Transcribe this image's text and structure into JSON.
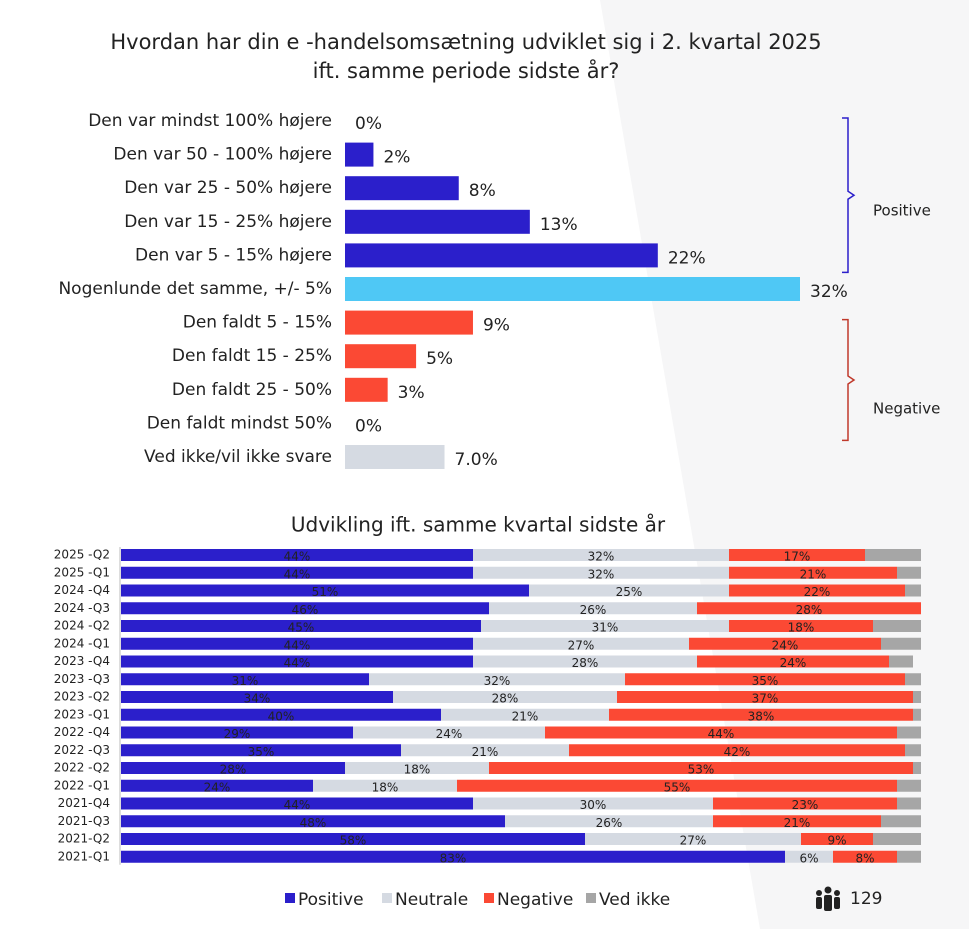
{
  "chart_data": [
    {
      "type": "bar",
      "orientation": "horizontal",
      "title": [
        "Hvordan har din e -handelsomsætning udviklet sig i 2. kvartal 2025",
        "ift. samme periode sidste år?"
      ],
      "categories": [
        "Den var mindst 100% højere",
        "Den var 50 - 100% højere",
        "Den var 25 - 50% højere",
        "Den var 15 - 25% højere",
        "Den var 5 - 15% højere",
        "Nogenlunde det samme, +/- 5%",
        "Den faldt 5 - 15%",
        "Den faldt 15 - 25%",
        "Den faldt 25 - 50%",
        "Den faldt mindst 50%",
        "Ved ikke/vil ikke svare"
      ],
      "values": [
        0,
        2,
        8,
        13,
        22,
        32,
        9,
        5,
        3,
        0,
        7
      ],
      "value_labels": [
        "0%",
        "2%",
        "8%",
        "13%",
        "22%",
        "32%",
        "9%",
        "5%",
        "3%",
        "0%",
        "7.0%"
      ],
      "colors": [
        "#2b1fcb",
        "#2b1fcb",
        "#2b1fcb",
        "#2b1fcb",
        "#2b1fcb",
        "#4fc8f5",
        "#fb4934",
        "#fb4934",
        "#fb4934",
        "#fb4934",
        "#d5dae2"
      ],
      "xlim": [
        0,
        32
      ],
      "groups": [
        {
          "label": "Positive",
          "color": "#2b1fcb"
        },
        {
          "label": "Negative",
          "color": "#c0392b"
        }
      ]
    },
    {
      "type": "stacked_bar",
      "orientation": "horizontal",
      "title": "Udvikling ift.  samme kvartal sidste år",
      "categories": [
        "2025 -Q2",
        "2025 -Q1",
        "2024 -Q4",
        "2024 -Q3",
        "2024 -Q2",
        "2024 -Q1",
        "2023 -Q4",
        "2023 -Q3",
        "2023 -Q2",
        "2023 -Q1",
        "2022 -Q4",
        "2022 -Q3",
        "2022 -Q2",
        "2022 -Q1",
        "2021-Q4",
        "2021-Q3",
        "2021-Q2",
        "2021-Q1"
      ],
      "xlim": [
        0,
        100
      ],
      "series": [
        {
          "name": "Positive",
          "color": "#2b1fcb",
          "label_color": "#ffffff",
          "values": [
            44,
            44,
            51,
            46,
            45,
            44,
            44,
            31,
            34,
            40,
            29,
            35,
            28,
            24,
            44,
            48,
            58,
            83
          ],
          "value_labels": [
            "44%",
            "44%",
            "51%",
            "46%",
            "45%",
            "44%",
            "44%",
            "31%",
            "34%",
            "40%",
            "29%",
            "35%",
            "28%",
            "24%",
            "44%",
            "48%",
            "58%",
            "83%"
          ]
        },
        {
          "name": "Neutrale",
          "color": "#d5dae2",
          "label_color": "#404040",
          "values": [
            32,
            32,
            25,
            26,
            31,
            27,
            28,
            32,
            28,
            21,
            24,
            21,
            18,
            18,
            30,
            26,
            27,
            6
          ],
          "value_labels": [
            "32%",
            "32%",
            "25%",
            "26%",
            "31%",
            "27%",
            "28%",
            "32%",
            "28%",
            "21%",
            "24%",
            "21%",
            "18%",
            "18%",
            "30%",
            "26%",
            "27%",
            "6%"
          ]
        },
        {
          "name": "Negative",
          "color": "#fb4934",
          "label_color": "#404040",
          "values": [
            17,
            21,
            22,
            28,
            18,
            24,
            24,
            35,
            37,
            38,
            44,
            42,
            53,
            55,
            23,
            21,
            9,
            8
          ],
          "value_labels": [
            "17%",
            "21%",
            "22%",
            "28%",
            "18%",
            "24%",
            "24%",
            "35%",
            "37%",
            "38%",
            "44%",
            "42%",
            "53%",
            "55%",
            "23%",
            "21%",
            "9%",
            "8%"
          ]
        },
        {
          "name": "Ved ikke",
          "color": "#a6a6a6",
          "values": [
            7,
            3,
            2,
            0,
            6,
            5,
            3,
            2,
            1,
            1,
            3,
            2,
            1,
            3,
            3,
            5,
            6,
            3
          ]
        }
      ]
    }
  ],
  "footer": {
    "page_number": 129
  }
}
